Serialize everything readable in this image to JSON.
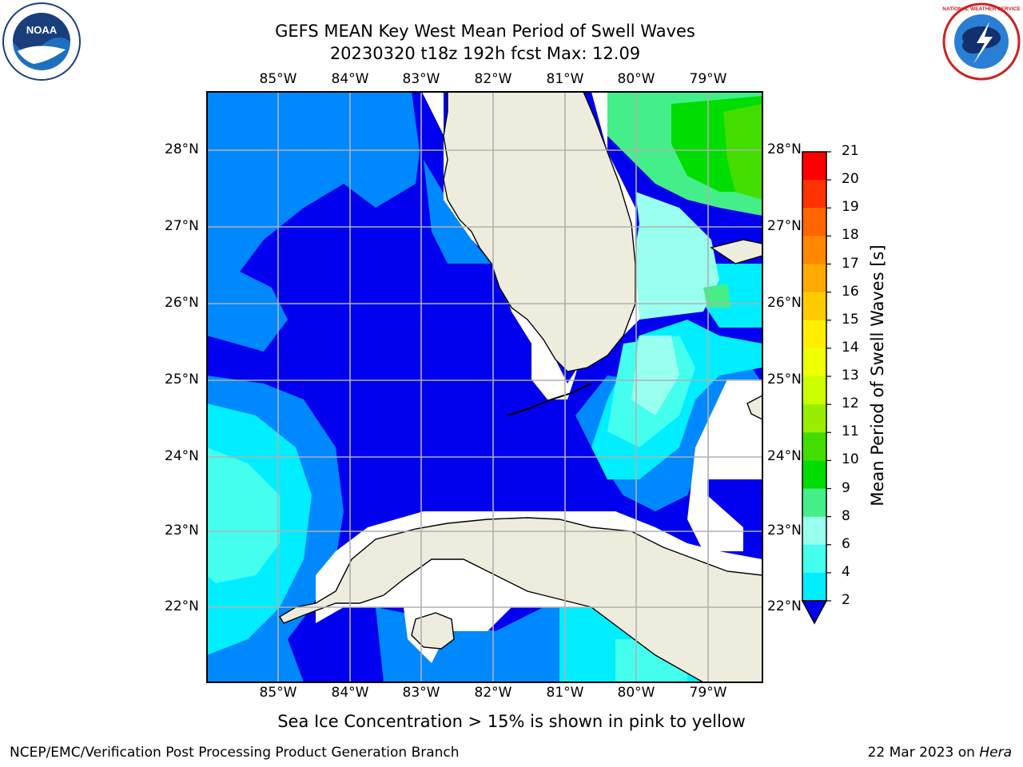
{
  "title": {
    "line1": "GEFS MEAN Key West Mean Period of Swell Waves",
    "line2": "20230320 t18z 192h fcst   Max: 12.09"
  },
  "map": {
    "lon_labels_top": [
      "85°W",
      "84°W",
      "83°W",
      "82°W",
      "81°W",
      "80°W",
      "79°W"
    ],
    "lon_labels_bottom": [
      "85°W",
      "84°W",
      "83°W",
      "82°W",
      "81°W",
      "80°W",
      "79°W"
    ],
    "lat_labels_left": [
      "28°N",
      "27°N",
      "26°N",
      "25°N",
      "24°N",
      "23°N",
      "22°N"
    ],
    "lat_labels_right": [
      "28°N",
      "27°N",
      "26°N",
      "25°N",
      "24°N",
      "23°N",
      "22°N"
    ],
    "land_color": "#eeecdc",
    "ocean_base_color": "#0000ee",
    "grid_color": "#b0b0b0"
  },
  "colorbar": {
    "title": "Mean Period of Swell Waves [s]",
    "ticks": [
      "21",
      "20",
      "19",
      "18",
      "17",
      "16",
      "15",
      "14",
      "13",
      "12",
      "11",
      "10",
      "9",
      "8",
      "6",
      "4",
      "2"
    ],
    "colors": [
      "#ff0000",
      "#ff3300",
      "#ff6600",
      "#ff8800",
      "#ffaa00",
      "#ffcc00",
      "#ffee00",
      "#eeff00",
      "#ccff00",
      "#99ee00",
      "#44dd00",
      "#00dd00",
      "#44ee88",
      "#99ffee",
      "#44ffee",
      "#00eeff",
      "#0088ff",
      "#0000ee"
    ]
  },
  "ice_note": "Sea Ice Concentration > 15% is shown in pink to yellow",
  "footer": {
    "left": "NCEP/EMC/Verification Post Processing Product Generation Branch",
    "right_date": "22 Mar 2023 on ",
    "right_host": "Hera"
  },
  "logos": {
    "left": "NOAA",
    "right": "NATIONAL WEATHER SERVICE"
  }
}
